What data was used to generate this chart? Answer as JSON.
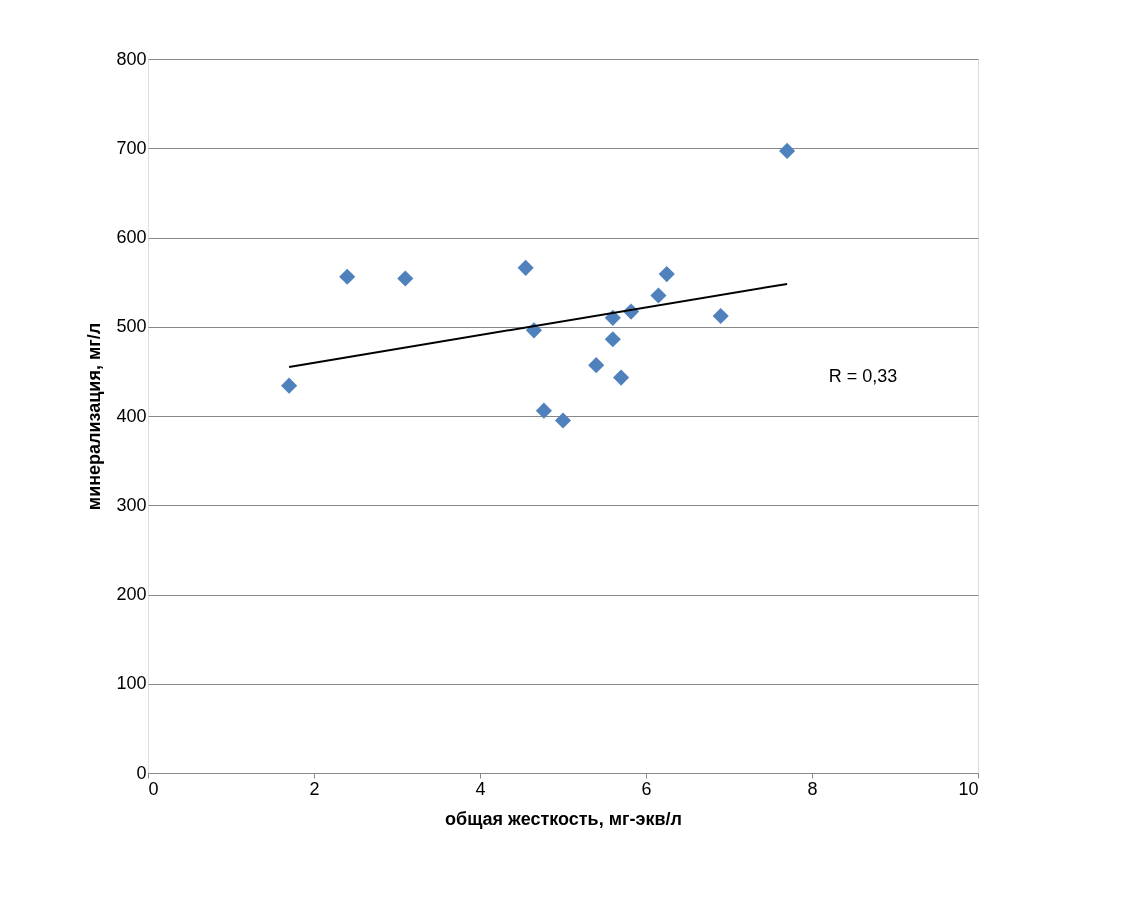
{
  "chart_data": {
    "type": "scatter",
    "xlabel": "общая жесткость, мг-экв/л",
    "ylabel": "минерализация, мг/л",
    "xlim": [
      0,
      10
    ],
    "xticks": [
      0,
      2,
      4,
      6,
      8,
      10
    ],
    "ylim": [
      0,
      800
    ],
    "yticks": [
      0,
      100,
      200,
      300,
      400,
      500,
      600,
      700,
      800
    ],
    "grid": "y",
    "marker": "diamond",
    "annotations": [
      "R = 0,33"
    ],
    "series": [
      {
        "color": "#4f81bd",
        "x": [
          1.7,
          2.4,
          3.1,
          4.55,
          4.65,
          4.77,
          5.0,
          5.4,
          5.6,
          5.6,
          5.7,
          5.82,
          6.15,
          6.25,
          6.9,
          7.7
        ],
        "values": [
          434,
          556,
          554,
          566,
          496,
          406,
          395,
          457,
          510,
          486,
          443,
          517,
          535,
          559,
          512,
          697
        ]
      },
      {
        "type": "line",
        "marker": "none",
        "color": "#000000",
        "x": [
          1.7,
          7.7
        ],
        "values": [
          455,
          548
        ]
      }
    ]
  }
}
